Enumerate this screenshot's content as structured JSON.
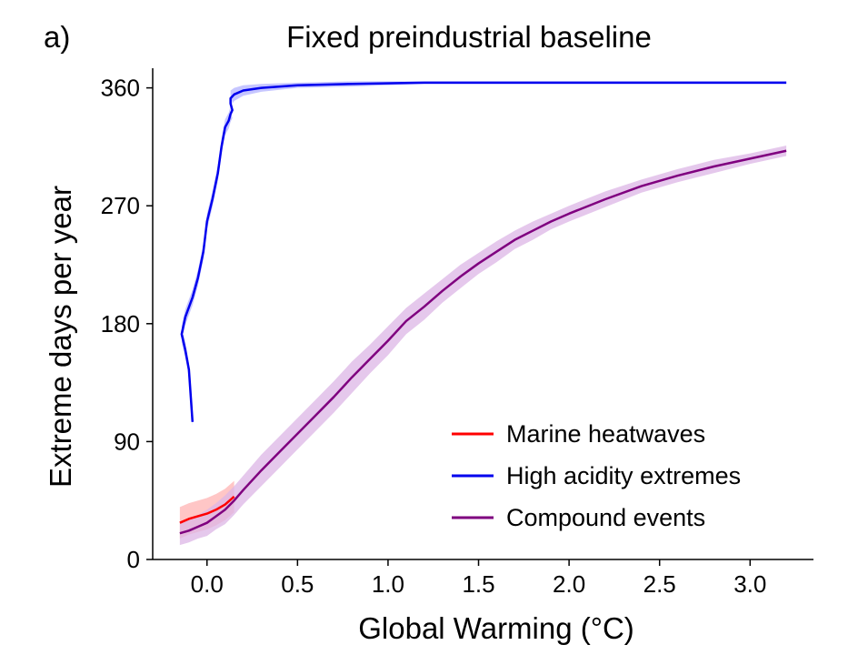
{
  "panel_label": "a)",
  "chart_data": {
    "type": "line",
    "title": "Fixed preindustrial baseline",
    "xlabel": "Global Warming (°C)",
    "ylabel": "Extreme days per year",
    "xlim": [
      -0.3,
      3.35
    ],
    "ylim": [
      0,
      375
    ],
    "xticks": [
      0.0,
      0.5,
      1.0,
      1.5,
      2.0,
      2.5,
      3.0
    ],
    "xtick_labels": [
      "0.0",
      "0.5",
      "1.0",
      "1.5",
      "2.0",
      "2.5",
      "3.0"
    ],
    "yticks": [
      0,
      90,
      180,
      270,
      360
    ],
    "ytick_labels": [
      "0",
      "90",
      "180",
      "270",
      "360"
    ],
    "grid": false,
    "legend_position": "lower-right",
    "series": [
      {
        "name": "Marine heatwaves",
        "color": "#ff0000",
        "band_color": "#ffb3b3",
        "x": [
          -0.15,
          -0.1,
          -0.05,
          0.0,
          0.05,
          0.1,
          0.15
        ],
        "y": [
          28,
          31,
          33,
          35,
          38,
          42,
          48
        ],
        "band": [
          12,
          12,
          12,
          12,
          12,
          12,
          12
        ]
      },
      {
        "name": "High acidity extremes",
        "color": "#0000ee",
        "band_color": "#b3b3ff",
        "x": [
          -0.08,
          -0.09,
          -0.1,
          -0.12,
          -0.14,
          -0.12,
          -0.08,
          -0.05,
          -0.02,
          0.0,
          0.03,
          0.06,
          0.08,
          0.1,
          0.12,
          0.13,
          0.14,
          0.13,
          0.13,
          0.15,
          0.2,
          0.3,
          0.5,
          0.8,
          1.2,
          2.0,
          3.2
        ],
        "y": [
          105,
          125,
          145,
          160,
          172,
          185,
          200,
          215,
          235,
          258,
          275,
          295,
          315,
          330,
          335,
          340,
          343,
          348,
          352,
          355,
          358,
          360,
          362,
          363,
          364,
          364,
          364
        ],
        "band": [
          3,
          4,
          5,
          6,
          6,
          6,
          6,
          6,
          6,
          6,
          6,
          6,
          6,
          6,
          6,
          6,
          6,
          6,
          6,
          5,
          4,
          3,
          2,
          2,
          1,
          1,
          1
        ]
      },
      {
        "name": "Compound events",
        "color": "#7f007f",
        "band_color": "#dcb6e6",
        "x": [
          -0.15,
          -0.1,
          -0.05,
          0.0,
          0.05,
          0.1,
          0.15,
          0.2,
          0.3,
          0.4,
          0.5,
          0.6,
          0.7,
          0.8,
          0.9,
          1.0,
          1.1,
          1.2,
          1.3,
          1.4,
          1.5,
          1.6,
          1.7,
          1.8,
          1.9,
          2.0,
          2.2,
          2.4,
          2.6,
          2.8,
          3.0,
          3.2
        ],
        "y": [
          20,
          22,
          25,
          28,
          33,
          38,
          45,
          53,
          68,
          82,
          96,
          110,
          124,
          139,
          153,
          167,
          182,
          193,
          205,
          216,
          226,
          235,
          244,
          251,
          258,
          264,
          275,
          285,
          293,
          300,
          306,
          312
        ],
        "band": [
          9,
          9,
          9,
          10,
          10,
          11,
          11,
          11,
          12,
          12,
          12,
          12,
          12,
          12,
          11,
          11,
          10,
          10,
          9,
          9,
          8,
          8,
          7,
          7,
          6,
          6,
          6,
          5,
          5,
          5,
          4,
          4
        ]
      }
    ]
  }
}
